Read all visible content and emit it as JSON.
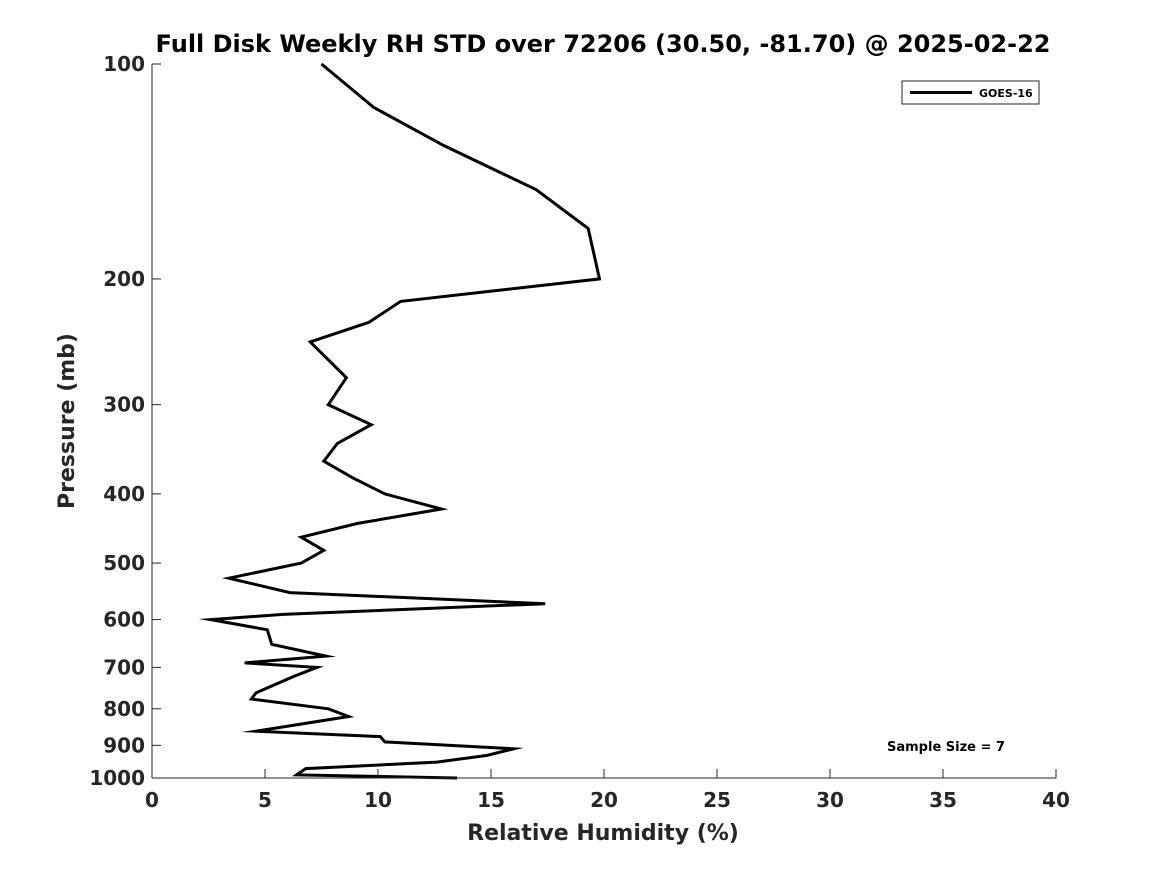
{
  "chart_data": {
    "type": "line",
    "title": "Full Disk Weekly RH STD over 72206 (30.50, -81.70) @ 2025-02-22",
    "xlabel": "Relative Humidity (%)",
    "ylabel": "Pressure (mb)",
    "xlim": [
      0,
      40
    ],
    "ylim": [
      100,
      1000
    ],
    "y_scale": "log",
    "y_reversed": true,
    "x_ticks": [
      0,
      5,
      10,
      15,
      20,
      25,
      30,
      35,
      40
    ],
    "x_tick_labels": [
      "0",
      "5",
      "10",
      "15",
      "20",
      "25",
      "30",
      "35",
      "40"
    ],
    "y_ticks": [
      100,
      200,
      300,
      400,
      500,
      600,
      700,
      800,
      900,
      1000
    ],
    "y_tick_labels": [
      "100",
      "200",
      "300",
      "400",
      "500",
      "600",
      "700",
      "800",
      "900",
      "1000"
    ],
    "grid": false,
    "legend_position": "top-right",
    "annotation": "Sample Size = 7",
    "series": [
      {
        "name": "GOES-16",
        "color": "#000000",
        "x": [
          7.5,
          9.8,
          12.9,
          17.0,
          19.3,
          19.8,
          11.0,
          9.6,
          7.0,
          8.6,
          7.8,
          9.7,
          8.2,
          7.6,
          8.9,
          10.3,
          12.8,
          9.1,
          6.6,
          7.6,
          6.6,
          3.4,
          6.1,
          17.4,
          5.8,
          2.6,
          5.1,
          5.3,
          7.7,
          4.1,
          7.3,
          6.3,
          4.6,
          4.4,
          7.8,
          8.7,
          5.6,
          4.6,
          10.1,
          10.3,
          16.0,
          14.8,
          12.6,
          6.8,
          6.4,
          13.5
        ],
        "y": [
          100,
          115,
          130,
          150,
          170,
          200,
          215,
          230,
          245,
          275,
          300,
          320,
          340,
          360,
          380,
          400,
          420,
          440,
          460,
          480,
          500,
          525,
          550,
          570,
          590,
          600,
          620,
          650,
          675,
          690,
          700,
          720,
          760,
          775,
          800,
          820,
          850,
          860,
          875,
          890,
          910,
          930,
          950,
          970,
          990,
          1000
        ]
      }
    ]
  }
}
